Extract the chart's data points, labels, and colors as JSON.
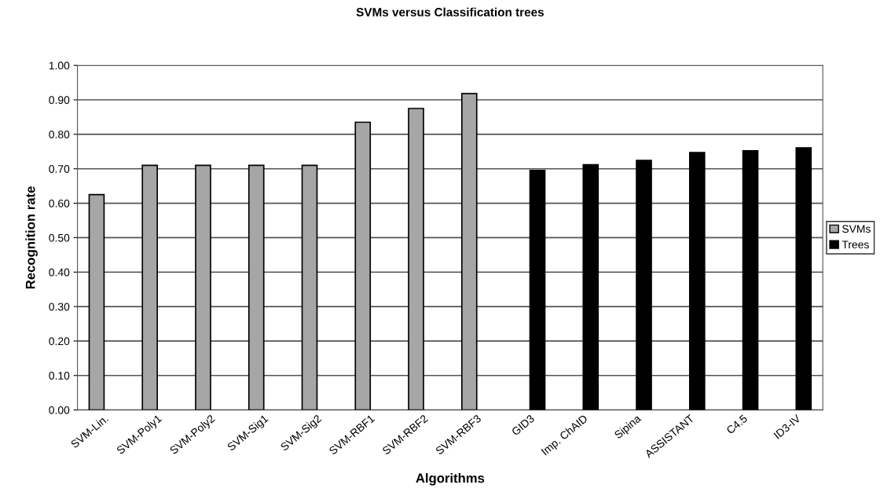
{
  "chart_data": {
    "type": "bar",
    "title": "SVMs versus Classification trees",
    "xlabel": "Algorithms",
    "ylabel": "Recognition rate",
    "categories": [
      "SVM-Lin.",
      "SVM-Poly1",
      "SVM-Poly2",
      "SVM-Sig1",
      "SVM-Sig2",
      "SVM-RBF1",
      "SVM-RBF2",
      "SVM-RBF3",
      "GID3",
      "Imp. ChAID",
      "Sipina",
      "ASSISTANT",
      "C4.5",
      "ID3-IV"
    ],
    "series": [
      {
        "name": "SVMs",
        "color": "#a6a6a6",
        "values": [
          0.625,
          0.71,
          0.71,
          0.71,
          0.71,
          0.835,
          0.875,
          0.918,
          null,
          null,
          null,
          null,
          null,
          null
        ]
      },
      {
        "name": "Trees",
        "color": "#000000",
        "values": [
          null,
          null,
          null,
          null,
          null,
          null,
          null,
          null,
          0.695,
          0.712,
          0.724,
          0.747,
          0.752,
          0.761
        ]
      }
    ],
    "ylim": [
      0,
      1
    ],
    "yticks": [
      {
        "value": 0,
        "label": "0.00"
      },
      {
        "value": 0.1,
        "label": "0.10"
      },
      {
        "value": 0.2,
        "label": "0.20"
      },
      {
        "value": 0.3,
        "label": "0.30"
      },
      {
        "value": 0.4,
        "label": "0.40"
      },
      {
        "value": 0.5,
        "label": "0.50"
      },
      {
        "value": 0.6,
        "label": "0.60"
      },
      {
        "value": 0.7,
        "label": "0.70"
      },
      {
        "value": 0.8,
        "label": "0.80"
      },
      {
        "value": 0.9,
        "label": "0.90"
      },
      {
        "value": 1,
        "label": "1.00"
      }
    ],
    "grid": "y",
    "legend": "right"
  }
}
